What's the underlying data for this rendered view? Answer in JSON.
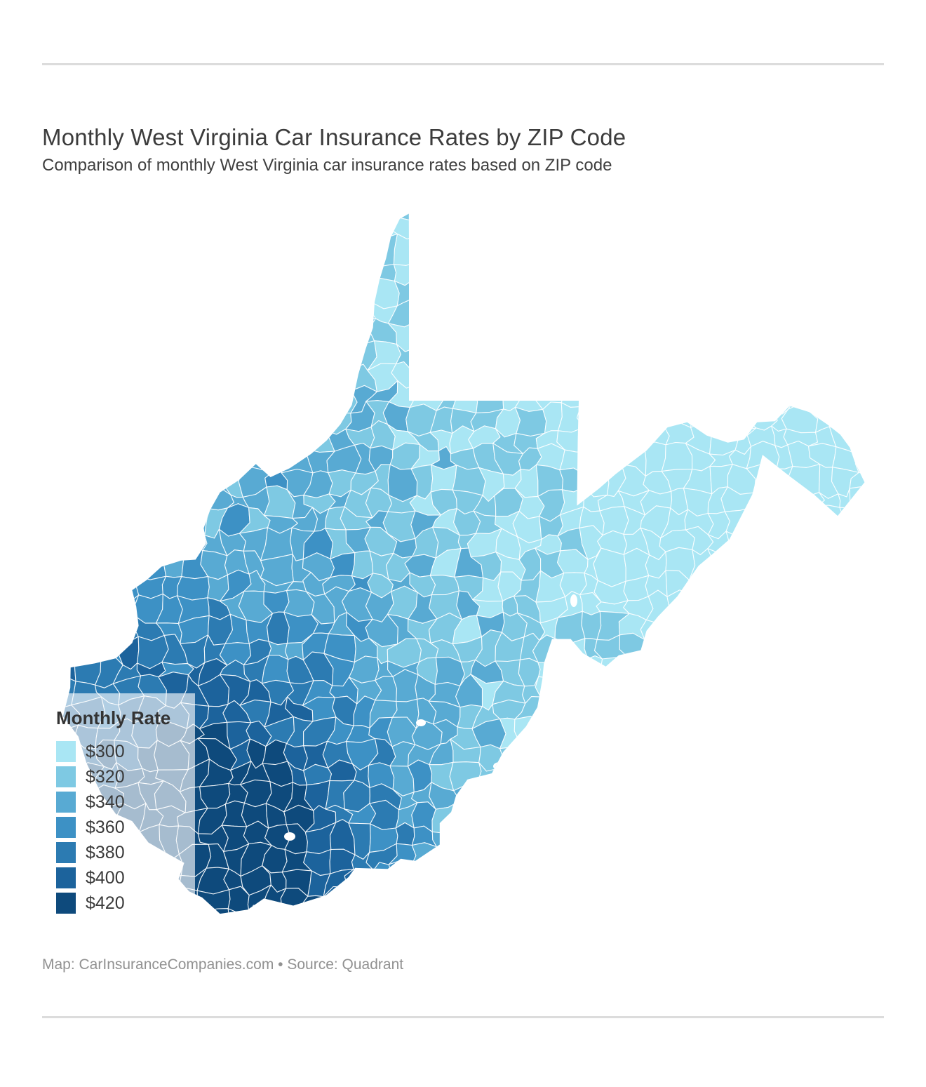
{
  "page": {
    "title": "Monthly West Virginia Car Insurance Rates by ZIP Code",
    "subtitle": "Comparison of monthly West Virginia car insurance rates based on ZIP code"
  },
  "legend": {
    "title": "Monthly Rate",
    "items": [
      {
        "label": "$300",
        "color": "#a9e6f4"
      },
      {
        "label": "$320",
        "color": "#7ec9e3"
      },
      {
        "label": "$340",
        "color": "#58aad3"
      },
      {
        "label": "$360",
        "color": "#3d91c5"
      },
      {
        "label": "$380",
        "color": "#2c7bb2"
      },
      {
        "label": "$400",
        "color": "#1c639c"
      },
      {
        "label": "$420",
        "color": "#0e4a7c"
      }
    ]
  },
  "footer": {
    "text": "Map: CarInsuranceCompanies.com • Source: Quadrant"
  },
  "chart_data": {
    "type": "choropleth",
    "title": "Monthly West Virginia Car Insurance Rates by ZIP Code",
    "region": "West Virginia",
    "geography": "ZIP code areas",
    "unit": "USD per month",
    "legend_title": "Monthly Rate",
    "legend_breaks": [
      300,
      320,
      340,
      360,
      380,
      400,
      420
    ],
    "colors": [
      "#a9e6f4",
      "#7ec9e3",
      "#58aad3",
      "#3d91c5",
      "#2c7bb2",
      "#1c639c",
      "#0e4a7c"
    ],
    "border_color": "#ffffff",
    "pattern": "Rates are lowest (about $300-$320) in the eastern panhandle and east, around $320-$360 across central and northern West Virginia including the northern panhandle, and highest ($380-$420) in the southwestern corner of the state."
  }
}
